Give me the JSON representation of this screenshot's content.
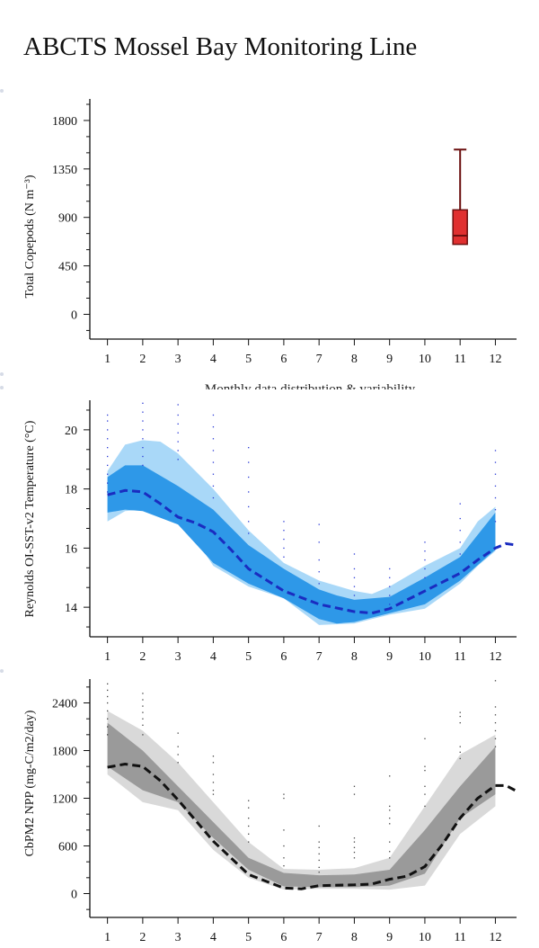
{
  "page": {
    "title": "ABCTS Mossel Bay Monitoring Line",
    "caption": "Monthly data distribution & variability"
  },
  "chart_data": [
    {
      "id": "copepods",
      "type": "box",
      "ylabel": "Total Copepods (N m⁻³)",
      "x_ticks": [
        1,
        2,
        3,
        4,
        5,
        6,
        7,
        8,
        9,
        10,
        11,
        12
      ],
      "y_ticks": [
        0,
        450,
        900,
        1350,
        1800
      ],
      "xlim": [
        0.5,
        12.6
      ],
      "ylim": [
        -230,
        2000
      ],
      "boxes": [
        {
          "month": 11,
          "whisker_low": 650,
          "q1": 650,
          "median": 730,
          "q3": 970,
          "whisker_high": 1530
        }
      ],
      "colors": {
        "box_fill": "#e03030",
        "box_edge": "#6b0f0f",
        "axis": "#111111"
      }
    },
    {
      "id": "sst",
      "type": "area",
      "ylabel": "Reynolds OI-SST-v2 Temperature (°C)",
      "x_ticks": [
        1,
        2,
        3,
        4,
        5,
        6,
        7,
        8,
        9,
        10,
        11,
        12
      ],
      "y_ticks": [
        14,
        16,
        18,
        20
      ],
      "xlim": [
        0.5,
        12.6
      ],
      "ylim": [
        13.0,
        21.0
      ],
      "outer_band": {
        "x": [
          1,
          1.5,
          2,
          2.5,
          3,
          3.5,
          4,
          5,
          6,
          7,
          8,
          8.5,
          9,
          10,
          11,
          11.5,
          12
        ],
        "upper": [
          18.6,
          19.5,
          19.65,
          19.6,
          19.2,
          18.6,
          18.0,
          16.6,
          15.5,
          14.9,
          14.55,
          14.45,
          14.7,
          15.4,
          16.0,
          16.9,
          17.4
        ],
        "lower": [
          16.9,
          17.25,
          17.3,
          17.2,
          16.9,
          16.3,
          15.4,
          14.7,
          14.3,
          13.4,
          13.45,
          13.6,
          13.75,
          13.95,
          14.8,
          15.4,
          15.9
        ]
      },
      "inner_band": {
        "x": [
          1,
          1.5,
          2,
          3,
          4,
          5,
          6,
          7,
          7.5,
          8,
          9,
          10,
          11,
          12
        ],
        "upper": [
          18.4,
          18.8,
          18.8,
          18.1,
          17.3,
          16.1,
          15.3,
          14.6,
          14.4,
          14.25,
          14.35,
          15.0,
          15.7,
          17.2
        ],
        "lower": [
          17.2,
          17.3,
          17.25,
          16.8,
          15.5,
          14.8,
          14.3,
          13.6,
          13.45,
          13.5,
          13.8,
          14.1,
          14.9,
          15.95
        ]
      },
      "mean": {
        "x": [
          1,
          1.5,
          2,
          2.5,
          3,
          3.5,
          4,
          4.5,
          5,
          6,
          7,
          8,
          8.5,
          9,
          10,
          11,
          11.5,
          12,
          12.3,
          12.6
        ],
        "y": [
          17.8,
          17.95,
          17.9,
          17.5,
          17.05,
          16.85,
          16.55,
          15.95,
          15.3,
          14.55,
          14.1,
          13.85,
          13.8,
          13.95,
          14.55,
          15.15,
          15.6,
          16.0,
          16.15,
          16.1
        ]
      },
      "observations": [
        {
          "month": 1,
          "values": [
            20.5,
            20.3,
            20.0,
            19.7,
            19.4,
            19.1,
            18.8,
            18.5,
            18.2,
            17.9
          ]
        },
        {
          "month": 2,
          "values": [
            20.9,
            20.6,
            20.3,
            20.0,
            19.7,
            19.4,
            19.1,
            18.8
          ]
        },
        {
          "month": 3,
          "values": [
            20.85,
            20.5,
            20.2,
            19.9,
            19.6,
            19.3,
            19.0
          ]
        },
        {
          "month": 4,
          "values": [
            20.5,
            20.1,
            19.7,
            19.3,
            18.9,
            18.5,
            18.1,
            17.7
          ]
        },
        {
          "month": 5,
          "values": [
            19.4,
            18.9,
            18.4,
            17.9,
            17.4,
            16.9,
            16.5
          ]
        },
        {
          "month": 6,
          "values": [
            16.9,
            16.6,
            16.3,
            16.0,
            15.7
          ]
        },
        {
          "month": 7,
          "values": [
            16.8,
            16.2,
            15.6,
            15.2,
            14.8
          ]
        },
        {
          "month": 8,
          "values": [
            15.8,
            15.3,
            15.0,
            14.7,
            14.4
          ]
        },
        {
          "month": 9,
          "values": [
            15.3,
            15.0,
            14.7,
            14.4,
            14.1
          ]
        },
        {
          "month": 10,
          "values": [
            16.2,
            15.9,
            15.6,
            15.3,
            15.0
          ]
        },
        {
          "month": 11,
          "values": [
            17.5,
            17.0,
            16.6,
            16.2,
            15.8
          ]
        },
        {
          "month": 12,
          "values": [
            19.3,
            18.9,
            18.5,
            18.1,
            17.7,
            17.3,
            16.9
          ]
        }
      ],
      "colors": {
        "outer": "#a9d8f8",
        "inner": "#2e98e8",
        "mean": "#1a2cc0",
        "points": "#2a3ad6",
        "axis": "#111111"
      }
    },
    {
      "id": "npp",
      "type": "area",
      "ylabel": "CbPM2 NPP (mg-C/m2/day)",
      "x_ticks": [
        1,
        2,
        3,
        4,
        5,
        6,
        7,
        8,
        9,
        10,
        11,
        12
      ],
      "y_ticks": [
        0,
        600,
        1200,
        1800,
        2400
      ],
      "xlim": [
        0.5,
        12.6
      ],
      "ylim": [
        -300,
        2700
      ],
      "outer_band": {
        "x": [
          1,
          2,
          3,
          4,
          5,
          6,
          7,
          8,
          9,
          10,
          11,
          12
        ],
        "upper": [
          2300,
          2050,
          1650,
          1150,
          650,
          310,
          300,
          320,
          450,
          1100,
          1750,
          2000
        ],
        "lower": [
          1500,
          1150,
          1050,
          550,
          200,
          50,
          60,
          60,
          50,
          100,
          750,
          1100
        ]
      },
      "inner_band": {
        "x": [
          1,
          2,
          3,
          4,
          5,
          6,
          7,
          8,
          9,
          10,
          11,
          12
        ],
        "upper": [
          2150,
          1800,
          1350,
          900,
          450,
          260,
          230,
          240,
          300,
          800,
          1350,
          1850
        ],
        "lower": [
          1600,
          1300,
          1150,
          700,
          300,
          90,
          80,
          80,
          100,
          250,
          950,
          1250
        ]
      },
      "mean": {
        "x": [
          1,
          1.5,
          2,
          2.5,
          3,
          4,
          5,
          6,
          6.5,
          7,
          8,
          8.5,
          9,
          9.5,
          10,
          10.5,
          11,
          11.5,
          12,
          12.3,
          12.6
        ],
        "y": [
          1590,
          1630,
          1600,
          1420,
          1180,
          660,
          240,
          70,
          60,
          100,
          110,
          120,
          180,
          220,
          340,
          620,
          950,
          1200,
          1360,
          1360,
          1290
        ]
      },
      "observations": [
        {
          "month": 1,
          "values": [
            2640,
            2560,
            2480,
            2400,
            2300,
            2200,
            2100,
            2000
          ]
        },
        {
          "month": 2,
          "values": [
            2520,
            2440,
            2360,
            2280,
            2200,
            2120,
            2000
          ]
        },
        {
          "month": 3,
          "values": [
            2020,
            1850,
            1750,
            1650
          ]
        },
        {
          "month": 4,
          "values": [
            1730,
            1650,
            1500,
            1400,
            1300,
            1250
          ]
        },
        {
          "month": 5,
          "values": [
            1170,
            1080,
            950,
            850,
            750,
            650
          ]
        },
        {
          "month": 6,
          "values": [
            1250,
            1200,
            800,
            600,
            450,
            350
          ]
        },
        {
          "month": 7,
          "values": [
            850,
            650,
            580,
            500,
            420,
            330,
            270
          ]
        },
        {
          "month": 8,
          "values": [
            1350,
            1250,
            700,
            650,
            580,
            520,
            450
          ]
        },
        {
          "month": 9,
          "values": [
            1480,
            1100,
            1050,
            950,
            880,
            650,
            530,
            450
          ]
        },
        {
          "month": 10,
          "values": [
            1950,
            1600,
            1550,
            1350,
            1250,
            1100
          ]
        },
        {
          "month": 11,
          "values": [
            2280,
            2230,
            2150,
            1850,
            1780,
            1700
          ]
        },
        {
          "month": 12,
          "values": [
            2680,
            2350,
            2250,
            2150,
            2050,
            1950,
            1850
          ]
        }
      ],
      "colors": {
        "outer": "#d9d9d9",
        "inner": "#9a9a9a",
        "mean": "#111111",
        "points": "#444444",
        "axis": "#111111"
      }
    }
  ]
}
